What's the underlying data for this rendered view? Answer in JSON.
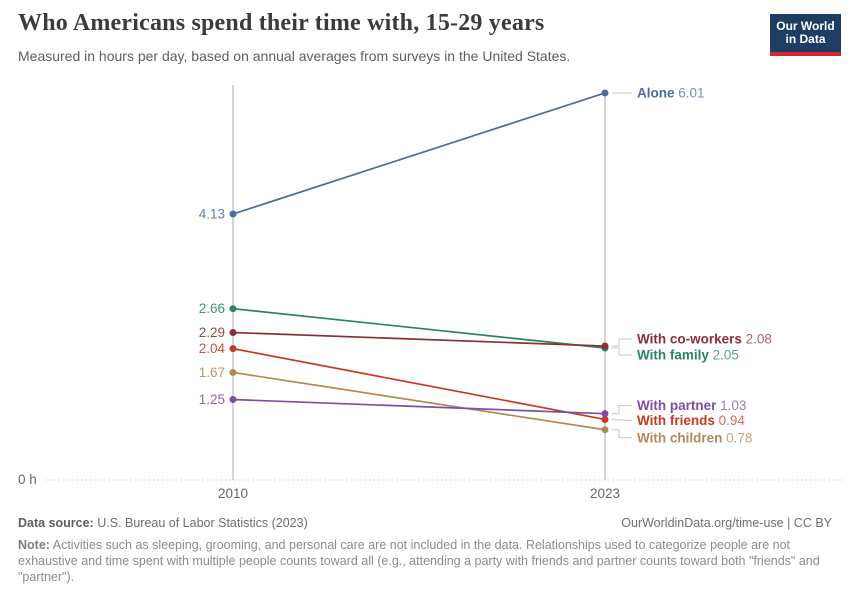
{
  "header": {
    "title": "Who Americans spend their time with, 15-29 years",
    "subtitle": "Measured in hours per day, based on annual averages from surveys in the United States.",
    "logo": {
      "line1": "Our World",
      "line2": "in Data",
      "bg_color": "#1d3d63",
      "stripe_color": "#d7282f"
    }
  },
  "chart_data": {
    "type": "line",
    "subtype": "slope",
    "x": [
      2010,
      2023
    ],
    "x_tick_labels": [
      "2010",
      "2023"
    ],
    "y_zero_label": "0 h",
    "ylim": [
      0,
      6.13
    ],
    "grid": "zero-line-dotted-only",
    "legend_position": "end-of-line-labels",
    "series": [
      {
        "name": "Alone",
        "values": [
          4.13,
          6.01
        ],
        "color": "#4C6A9C",
        "label_dy": 0
      },
      {
        "name": "With family",
        "values": [
          2.66,
          2.05
        ],
        "color": "#2C8465",
        "label_dy": 7
      },
      {
        "name": "With co-workers",
        "values": [
          2.29,
          2.08
        ],
        "color": "#883039",
        "label_dy": -7
      },
      {
        "name": "With friends",
        "values": [
          2.04,
          0.94
        ],
        "color": "#C43B22",
        "label_dy": 1
      },
      {
        "name": "With children",
        "values": [
          1.67,
          0.78
        ],
        "color": "#AF8A54",
        "label_dy": 8
      },
      {
        "name": "With partner",
        "values": [
          1.25,
          1.03
        ],
        "color": "#7C4EA5",
        "label_dy": -8
      }
    ]
  },
  "footer": {
    "data_source_label": "Data source:",
    "data_source": "U.S. Bureau of Labor Statistics (2023)",
    "link": "OurWorldinData.org/time-use | CC BY",
    "note_label": "Note:",
    "note": "Activities such as sleeping, grooming, and personal care are not included in the data. Relationships used to categorize people are not exhaustive and time spent with multiple people counts toward all (e.g., attending a party with friends and partner counts toward both \"friends\" and \"partner\")."
  }
}
